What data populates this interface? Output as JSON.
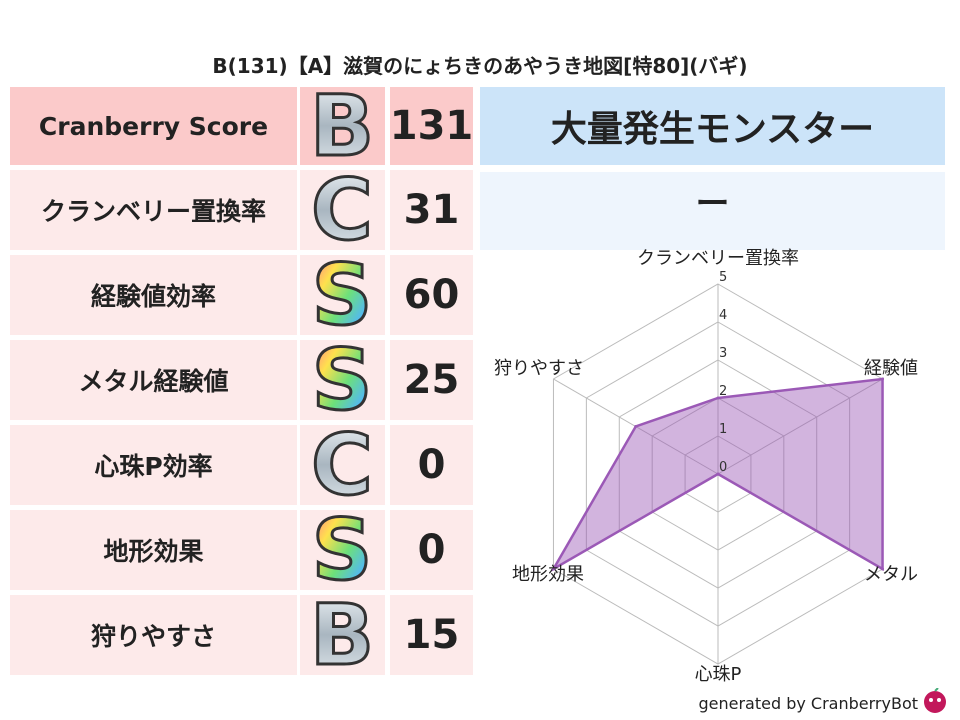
{
  "title": "B(131)【A】滋賀のにょちきのあやうき地図[特80](バギ)",
  "rows": [
    {
      "label": "Cranberry Score",
      "grade": "B",
      "score": "131"
    },
    {
      "label": "クランベリー置換率",
      "grade": "C",
      "score": "31"
    },
    {
      "label": "経験値効率",
      "grade": "S",
      "score": "60"
    },
    {
      "label": "メタル経験値",
      "grade": "S",
      "score": "25"
    },
    {
      "label": "心珠P効率",
      "grade": "C",
      "score": "0"
    },
    {
      "label": "地形効果",
      "grade": "S",
      "score": "0"
    },
    {
      "label": "狩りやすさ",
      "grade": "B",
      "score": "15"
    }
  ],
  "monster_header": "大量発生モンスター",
  "monster_value": "ー",
  "footer": "generated by CranberryBot",
  "colors": {
    "header_pink": "#fbcaca",
    "row_pink": "#fdeaea",
    "blue_header": "#cce4f9",
    "blue_light": "#eef5fd",
    "radar": "#9b59b6"
  },
  "chart_data": {
    "type": "radar",
    "axes": [
      "クランベリー置換率",
      "経験値",
      "メタル",
      "心珠P",
      "地形効果",
      "狩りやすさ"
    ],
    "values": [
      2,
      5,
      5,
      0,
      5,
      2.5
    ],
    "rlim": [
      0,
      5
    ],
    "ticks": [
      "0",
      "1",
      "2",
      "3",
      "4",
      "5"
    ]
  }
}
